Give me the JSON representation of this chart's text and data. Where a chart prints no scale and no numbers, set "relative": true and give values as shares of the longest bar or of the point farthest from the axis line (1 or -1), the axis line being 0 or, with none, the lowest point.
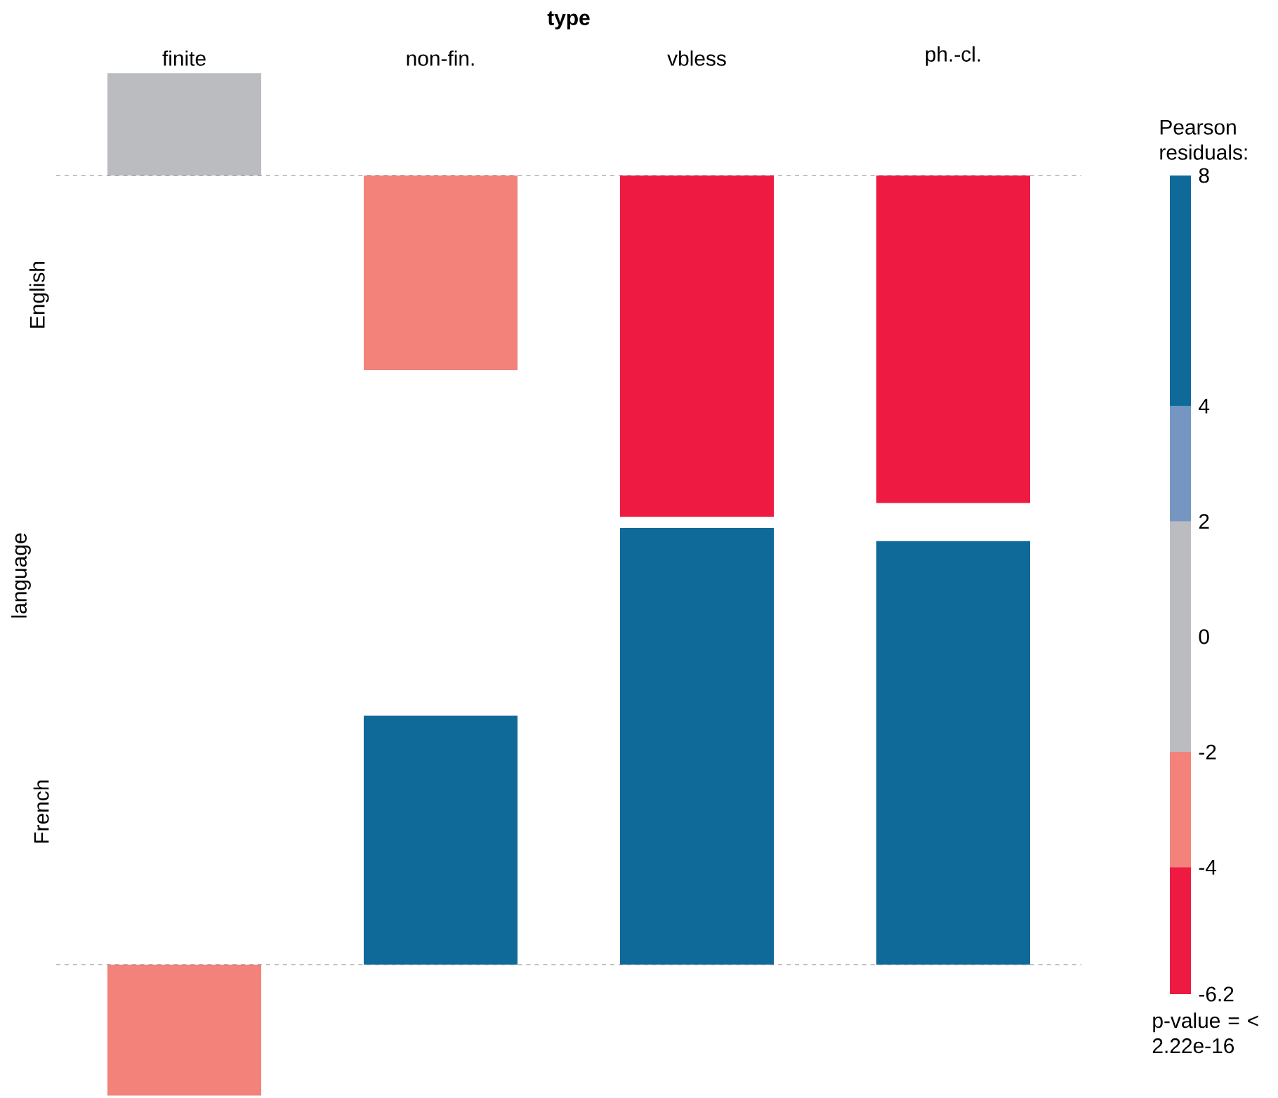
{
  "chart_data": [
    {
      "type": "bar",
      "title": "type",
      "ylabel": "English",
      "relative": true,
      "tick_labels": "x",
      "categories": [
        "finite",
        "non-fin.",
        "vbless",
        "ph.-cl."
      ],
      "values": [
        0.3,
        -0.57,
        -1,
        -0.96
      ],
      "colors": [
        "#bbbcc0",
        "#f2827a",
        "#ee1a42",
        "#ee1a42"
      ],
      "annotations": [
        "language"
      ],
      "ref_lines": [
        {
          "axis": "y",
          "value": 0,
          "color": "#666666",
          "line_style": "dashed"
        }
      ]
    },
    {
      "type": "bar",
      "ylabel": "French",
      "relative": true,
      "categories": [
        null,
        null,
        null,
        null
      ],
      "values": [
        -0.3,
        0.57,
        1,
        0.97
      ],
      "colors": [
        "#f2827a",
        "#0f6a9a",
        "#0f6a9a",
        "#0f6a9a"
      ],
      "ref_lines": [
        {
          "axis": "y",
          "value": 0,
          "color": "#666666",
          "line_style": "dashed"
        }
      ]
    },
    {
      "type": "bar",
      "stacked": true,
      "title": "Pearson residuals:",
      "tick_labels": "y",
      "categories": [
        null
      ],
      "ylim": [
        -6.2,
        8
      ],
      "yticks": [
        -6.2,
        -4,
        -2,
        0,
        2,
        4,
        8
      ],
      "annotations": [
        "p-value = < 2.22e-16"
      ],
      "series": [
        {
          "color": "#bbbcc0",
          "values": [
            2
          ]
        },
        {
          "color": "#7596c0",
          "values": [
            2
          ]
        },
        {
          "color": "#0f6a9a",
          "values": [
            4
          ]
        },
        {
          "color": "#bbbcc0",
          "values": [
            -2
          ]
        },
        {
          "color": "#f2827a",
          "values": [
            -2
          ]
        },
        {
          "color": "#ee1a42",
          "values": [
            -2.2
          ]
        }
      ]
    }
  ]
}
